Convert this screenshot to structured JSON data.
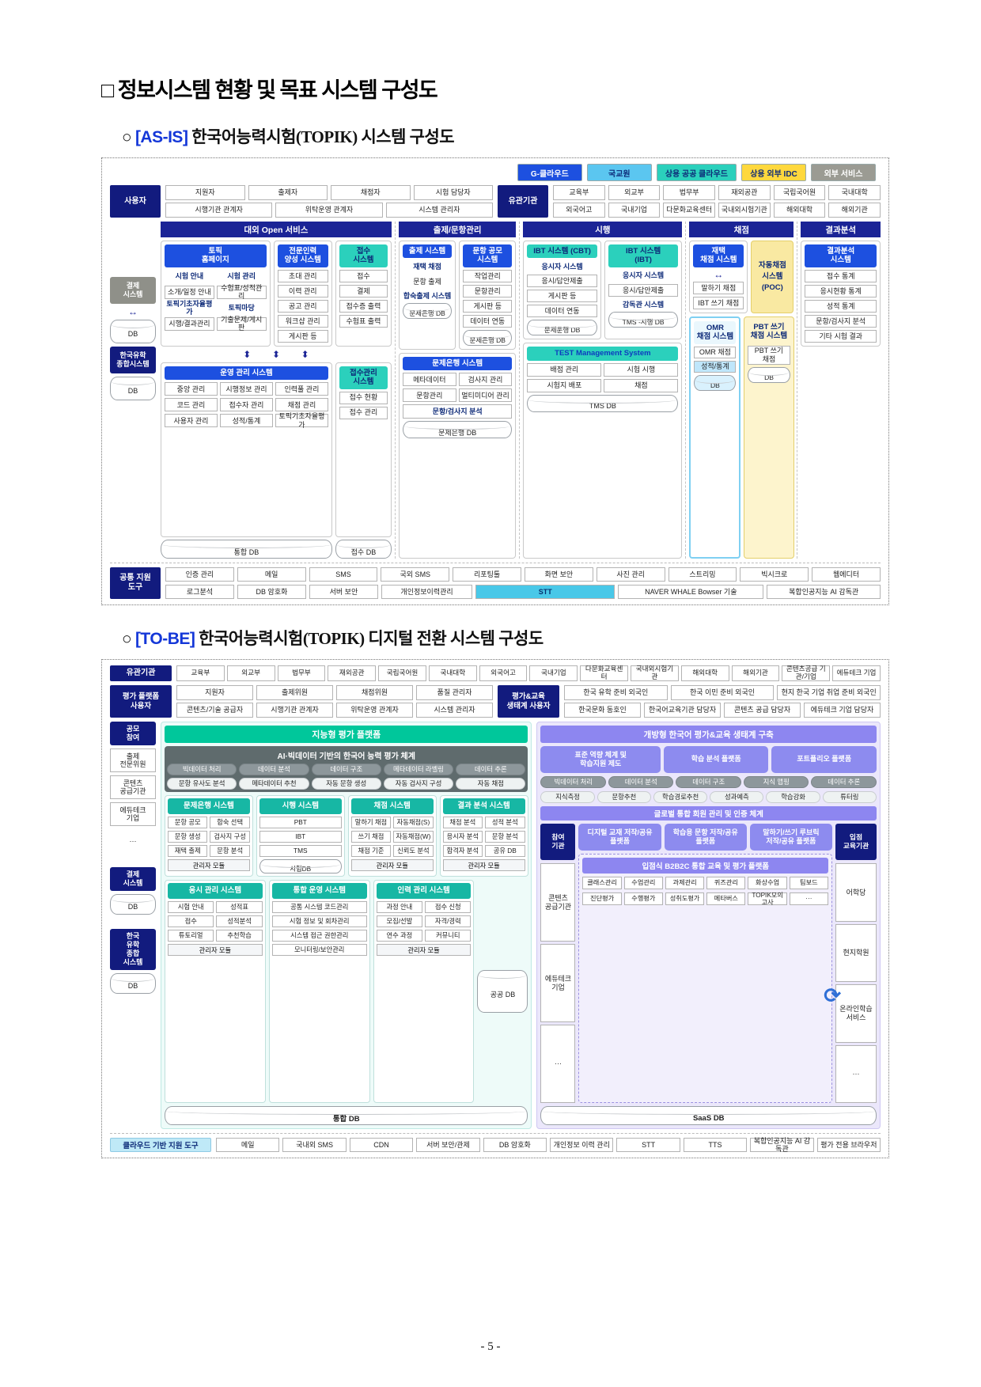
{
  "doc": {
    "title": "□ 정보시스템 현황 및 목표 시스템 구성도",
    "asis_bullet": "○",
    "asis_tag": "[AS-IS]",
    "asis_title": "한국어능력시험(TOPIK) 시스템 구성도",
    "tobe_bullet": "○",
    "tobe_tag": "[TO-BE]",
    "tobe_title": "한국어능력시험(TOPIK) 디지털 전환 시스템 구성도",
    "page_number": "- 5 -"
  },
  "colors": {
    "navy": "#121b7e",
    "blue": "#1d50e0",
    "teal": "#2bd0bc",
    "light_blue": "#5bc6f0",
    "yellow": "#ffd83d",
    "gray": "#9b9b93",
    "purple": "#8d8bef",
    "green_teal": "#00c79b"
  },
  "asis": {
    "legend": [
      "G-클라우드",
      "국교원",
      "상용 공공 클라우드",
      "상용 외부 IDC",
      "외부 서비스"
    ],
    "users_label": "사용자",
    "users_row1": [
      "지원자",
      "출제자",
      "채점자",
      "시험 담당자"
    ],
    "users_row2": [
      "시행기관 관계자",
      "위탁운영 관계자",
      "시스템 관리자"
    ],
    "orgs_label": "유관기관",
    "orgs_row1": [
      "교육부",
      "외교부",
      "법무부",
      "재외공관",
      "국립국어원",
      "국내대학"
    ],
    "orgs_row2": [
      "외국어고",
      "국내기업",
      "다문화교육센터",
      "국내외시험기관",
      "해외대학",
      "해외기관"
    ],
    "sections": [
      "대외 Open 서비스",
      "출제/문항관리",
      "시행",
      "채점",
      "결과분석"
    ],
    "payment_label": "결제\n시스템",
    "payment_db": "DB",
    "kosaf_label": "한국유학\n종합시스템",
    "kosaf_db": "DB",
    "home": {
      "title": "토픽\n홈페이지",
      "h1": [
        "시험 안내",
        "시험 관리"
      ],
      "r1": [
        "소개/일정 안내",
        "수험표/성적관리"
      ],
      "h2": [
        "토픽기초자율평가",
        "토픽마당"
      ],
      "r2": [
        "시행/결과관리",
        "기출문제/게시판"
      ]
    },
    "expert": {
      "title": "전문인력\n양성 시스템",
      "items": [
        "초대 관리",
        "이력 관리",
        "공고 관리",
        "워크샵 관리",
        "게시판 등"
      ]
    },
    "receipt": {
      "title": "접수\n시스템",
      "items": [
        "접수",
        "결제",
        "접수증 출력",
        "수험표 출력"
      ]
    },
    "make": {
      "title": "출제 시스템",
      "bold": "재택 채점",
      "item": "문항 출제",
      "sub": "합숙출제 시스템",
      "db": "문제은행 DB"
    },
    "contest": {
      "title": "문항 공모\n시스템",
      "items": [
        "작업관리",
        "문항관리",
        "게시판 등",
        "데이터 연동"
      ],
      "db": "문제은행 DB"
    },
    "cbt": {
      "title": "IBT 시스템 (CBT)",
      "bold": "응시자 시스템",
      "items": [
        "응시/답안제출",
        "게시판 등",
        "데이터 연동"
      ],
      "db": "문제운행 DB"
    },
    "ibt": {
      "title": "IBT 시스템\n(IBT)",
      "bold": "응시자 시스템",
      "items": [
        "응시/답안제출"
      ],
      "sub": "감독관 시스템",
      "db": "TMS -시행 DB"
    },
    "homegrade": {
      "title": "재택\n채점 시스템",
      "items": [
        "말하기 채점",
        "IBT 쓰기 채점"
      ]
    },
    "auto_label": "자동채점\n시스템\n(POC)",
    "result": {
      "title": "결과분석\n시스템",
      "items": [
        "접수 통계",
        "응시현황 통계",
        "성적 통계",
        "문항/검사지 분석",
        "기타 시험 결과"
      ]
    },
    "ops": {
      "title": "운영 관리 시스템",
      "items": [
        "중앙 관리",
        "시행정보 관리",
        "인력풀 관리",
        "코드 관리",
        "접수자 관리",
        "채점 관리",
        "사용자 관리",
        "성적/통계",
        "토픽기초자율평가"
      ],
      "db": "통합 DB"
    },
    "recv": {
      "title": "접수관리\n시스템",
      "items": [
        "접수 현황",
        "접수 관리"
      ],
      "db": "접수 DB"
    },
    "bank": {
      "title": "문제은행 시스템",
      "items": [
        "메타데이터",
        "검사지 관리",
        "문항관리",
        "멀티미디어 관리"
      ],
      "wide": "문항/검사지 분석",
      "db": "문제은행 DB"
    },
    "tms": {
      "title": "TEST Management System",
      "items": [
        "배점 관리",
        "시험 시행",
        "시험지 배포",
        "채점"
      ],
      "db": "TMS DB"
    },
    "omr": {
      "title": "OMR\n채점 시스템",
      "item1": "OMR 채점",
      "item2": "성적/통계",
      "db": "DB"
    },
    "pbt": {
      "title": "PBT 쓰기\n채점 시스템",
      "item": "PBT 쓰기\n채점",
      "db": "DB"
    },
    "tools_label": "공통 지원\n도구",
    "tools_row1": [
      "인증 관리",
      "메일",
      "SMS",
      "국외 SMS",
      "리포팅툴",
      "화면 보안",
      "사진 관리",
      "스트리밍",
      "빅시크로",
      "웹에디터"
    ],
    "tools_row2a": [
      "로그분석",
      "DB 암호화",
      "서버 보안",
      "개인정보이력관리"
    ],
    "tools_stt": "STT",
    "tools_row2b": [
      "NAVER WHALE Bowser 기술",
      "복합인공지능 AI 감독관"
    ]
  },
  "tobe": {
    "orgs_label": "유관기관",
    "orgs": [
      "교육부",
      "외교부",
      "법무부",
      "재외공관",
      "국립국어원",
      "국내대학",
      "외국어고",
      "국내기업",
      "다문화교육센터",
      "국내외시험기관",
      "해외대학",
      "해외기관",
      "콘텐츠공급 기관/기업",
      "에듀테크 기업"
    ],
    "pu_label": "평가 플랫폼\n사용자",
    "pu_row1": [
      "지원자",
      "출제위원",
      "채점위원",
      "품질 관리자"
    ],
    "pu_row2": [
      "콘텐츠/기술 공급자",
      "시행기관 관계자",
      "위탁운영 관계자",
      "시스템 관리자"
    ],
    "eco_label": "평가&교육\n생태계 사용자",
    "eco_row1": [
      "한국 유학 준비 외국인",
      "한국 이민 준비 외국인",
      "현지 한국 기업 취업 준비 외국인"
    ],
    "eco_row2": [
      "한국문화 동호인",
      "한국어교육기관 담당자",
      "콘텐츠 공급 담당자",
      "에듀테크 기업 담당자"
    ],
    "left_header": "지능형 평가 플랫폼",
    "ai_bar": "AI·빅데이터 기반의 한국어 능력 평가 체계",
    "ai_row1": [
      "빅데이터 처리",
      "데이터 분석",
      "데이터 구조",
      "메타데이터 라벨링",
      "데이터 추론"
    ],
    "ai_row2": [
      "문항 유사도 분석",
      "메타데이터 추천",
      "자동 문항 생성",
      "자동 검사지 구성",
      "자동 채점"
    ],
    "bank": {
      "title": "문제은행 시스템",
      "items": [
        "문항 공모",
        "합숙 선택",
        "문항 생성",
        "검사지 구성",
        "재택 출제",
        "문항 분석"
      ],
      "footer": "관리자 모듈"
    },
    "exec": {
      "title": "시행 시스템",
      "items": [
        "PBT",
        "IBT",
        "TMS"
      ],
      "db": "시험DB"
    },
    "grade": {
      "title": "채점 시스템",
      "items": [
        "말하기 채점",
        "자동채점(S)",
        "쓰기 채점",
        "자동채점(W)",
        "채점 기준",
        "신뢰도 분석"
      ],
      "footer": "관리자 모듈"
    },
    "result": {
      "title": "결과 분석 시스템",
      "items": [
        "채점 분석",
        "성적 분석",
        "응시자 분석",
        "문항 분석",
        "합격자 분석",
        "공유 DB"
      ],
      "footer": "관리자 모듈"
    },
    "apply": {
      "title": "응시 관리 시스템",
      "items": [
        "시험 안내",
        "성적표",
        "접수",
        "성적분석",
        "튜토리얼",
        "추천학습"
      ],
      "footer": "관리자 모듈"
    },
    "opsys": {
      "title": "통합 운영 시스템",
      "items": [
        "공통 시스템 코드관리",
        "시험 정보 및 회차관리",
        "시스템 접근 권한관리",
        "모니터링/보안관리"
      ]
    },
    "hr": {
      "title": "인력 관리 시스템",
      "items": [
        "과정 안내",
        "접수 신청",
        "모집/선발",
        "자격/경력",
        "연수 과정",
        "커뮤니티"
      ],
      "footer": "관리자 모듈"
    },
    "public_db": "공공 DB",
    "integrated_db": "통합 DB",
    "right_header": "개방형 한국어 평가&교육 생태계 구축",
    "right_top": [
      "표준 역량 체계 및\n학습지원 제도",
      "학습 분석 플랫폼",
      "포트폴리오 플랫폼"
    ],
    "rt_row1": [
      "빅데이터 처리",
      "데이터 분석",
      "데이터 구조",
      "지식 맵핑",
      "데이터 추론"
    ],
    "rt_row2": [
      "지식측정",
      "문항추천",
      "학습경로추천",
      "성과예측",
      "학습강화",
      "튜터링"
    ],
    "global_bar": "글로벌 통합 회원 관리 및 인증 체계",
    "participate_label": "참여\n기관",
    "platforms": [
      "디지털 교재 저작/공유\n플랫폼",
      "학습용 문항 저작/공유\n플랫폼",
      "말하기/쓰기 루브릭\n저작/공유 플랫폼"
    ],
    "entry_label": "입점\n교육기관",
    "left_orgs": [
      "콘텐츠\n공급기관",
      "에듀테크\n기업",
      "···"
    ],
    "right_orgs": [
      "어학당",
      "현지학원",
      "온라인학습\n서비스",
      "···"
    ],
    "b2b2c_bar": "입점식 B2B2C 통합 교육 및 평가 플랫폼",
    "b2b2c_row1": [
      "클래스관리",
      "수업관리",
      "과제관리",
      "퀴즈관리",
      "화상수업",
      "팀보드"
    ],
    "b2b2c_row2": [
      "진단평가",
      "수행평가",
      "성취도평가",
      "메타버스",
      "TOPIK모의고사",
      "···"
    ],
    "sync_icon": "⟳",
    "saas_db": "SaaS DB",
    "rail_contest_label": "공모\n참여",
    "rail_contest": [
      "출제\n전문위원",
      "콘텐츠\n공급기관",
      "에듀테크\n기업",
      "···"
    ],
    "rail_payment": "결제\n시스템",
    "rail_payment_db": "DB",
    "rail_kosaf": "한국\n유학\n종합\n시스템",
    "rail_kosaf_db": "DB",
    "tools_label": "클라우드 기반 지원 도구",
    "tools": [
      "메일",
      "국내외 SMS",
      "CDN",
      "서버 보안/관제",
      "DB 암호화",
      "개인정보 이력 관리",
      "STT",
      "TTS",
      "복합인공지능 AI 감독관",
      "평가 전용 브라우저"
    ]
  }
}
